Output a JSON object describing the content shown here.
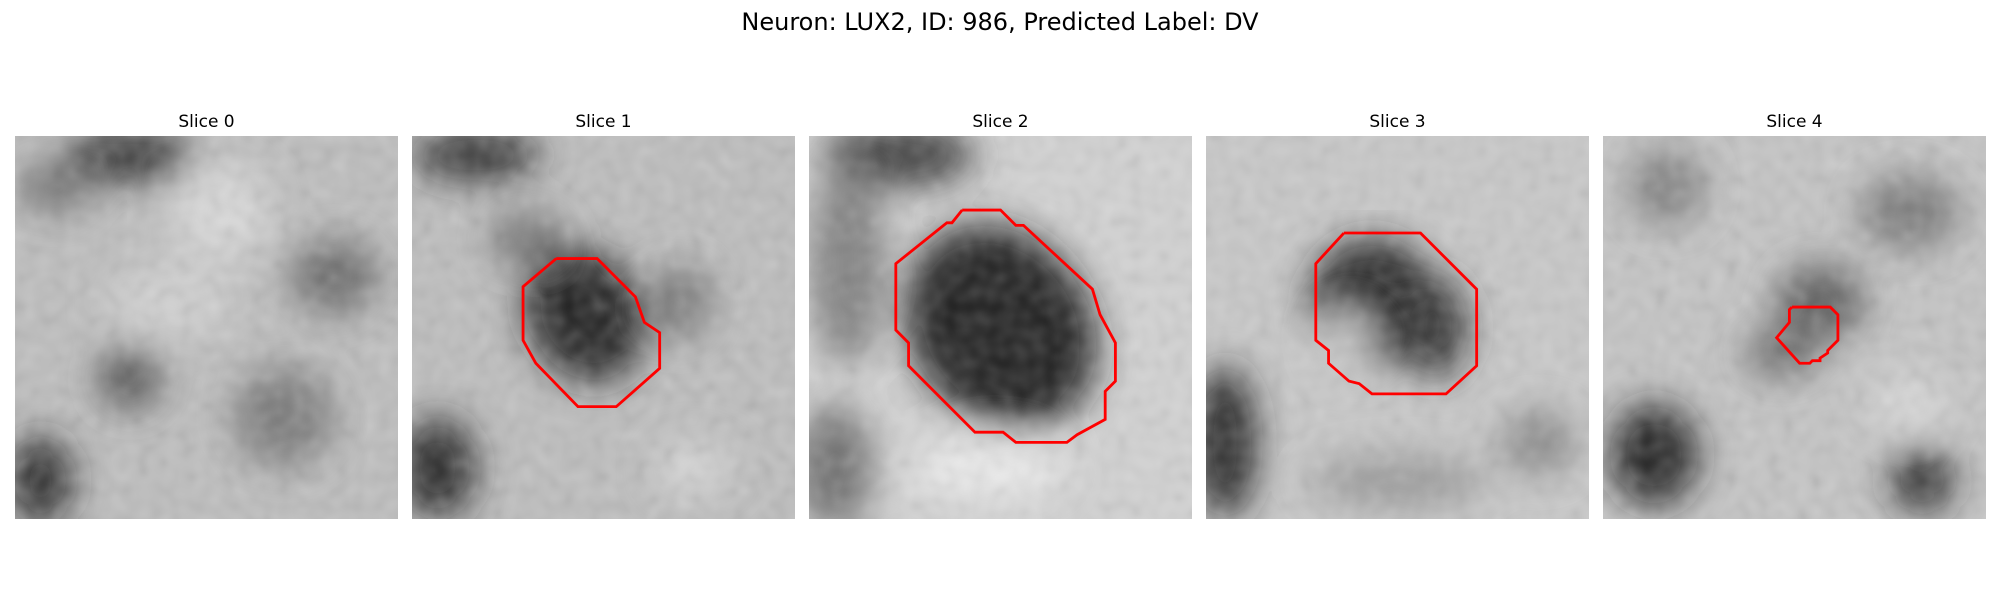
{
  "figure": {
    "title": "Neuron: LUX2, ID: 986, Predicted Label: DV"
  },
  "colors": {
    "contour": "#ff0000"
  },
  "panels": [
    {
      "title": "Slice 0",
      "has_contour": false
    },
    {
      "title": "Slice 1",
      "has_contour": true
    },
    {
      "title": "Slice 2",
      "has_contour": true
    },
    {
      "title": "Slice 3",
      "has_contour": true
    },
    {
      "title": "Slice 4",
      "has_contour": true
    }
  ]
}
